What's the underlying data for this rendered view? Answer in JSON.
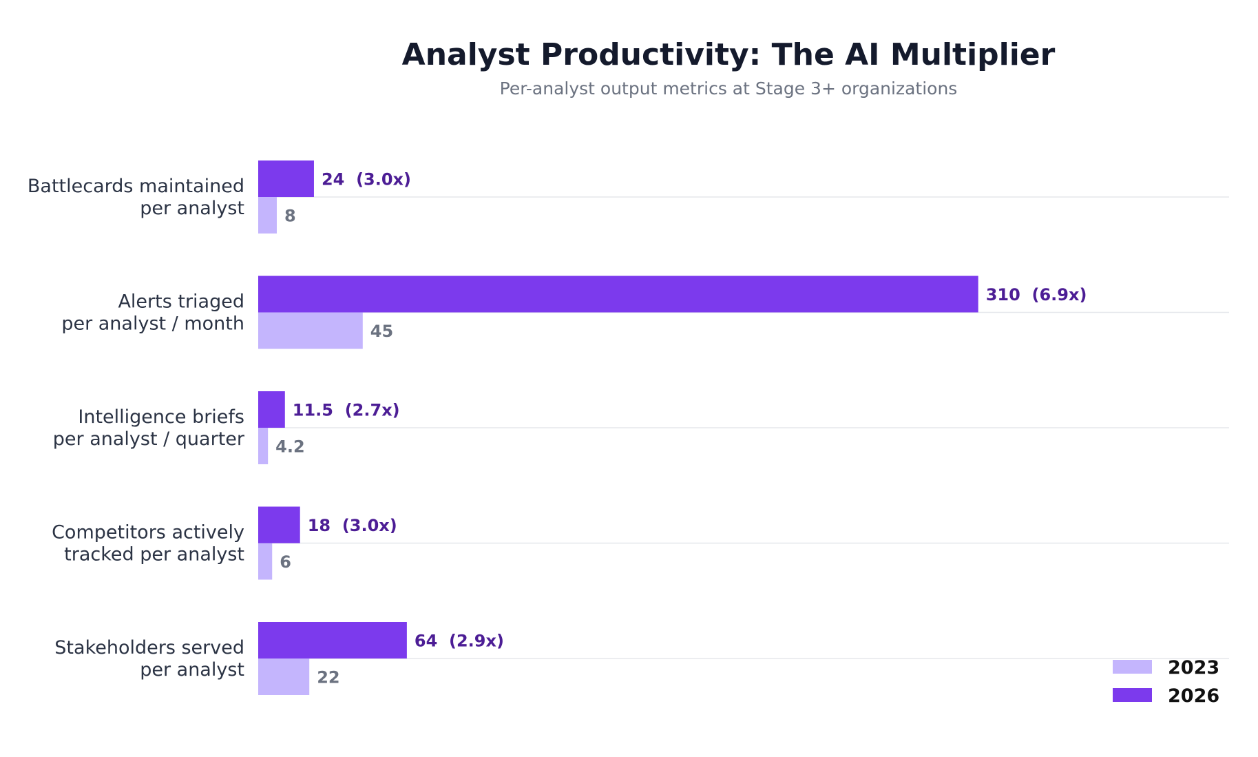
{
  "colors": {
    "series_2023": "#c4b5fd",
    "series_2026": "#7c3aed"
  },
  "chart_data": {
    "type": "bar",
    "orientation": "horizontal",
    "title": "Analyst Productivity: The AI Multiplier",
    "subtitle": "Per-analyst output metrics at Stage 3+ organizations",
    "categories": [
      [
        "Battlecards maintained",
        "per analyst"
      ],
      [
        "Alerts triaged",
        "per analyst / month"
      ],
      [
        "Intelligence briefs",
        "per analyst / quarter"
      ],
      [
        "Competitors actively",
        "tracked per analyst"
      ],
      [
        "Stakeholders served",
        "per analyst"
      ]
    ],
    "series": [
      {
        "name": "2023",
        "values": [
          8,
          45,
          4.2,
          6,
          22
        ],
        "labels": [
          "8",
          "45",
          "4.2",
          "6",
          "22"
        ]
      },
      {
        "name": "2026",
        "values": [
          24,
          310,
          11.5,
          18,
          64
        ],
        "labels": [
          "24  (3.0x)",
          "310  (6.9x)",
          "11.5  (2.7x)",
          "18  (3.0x)",
          "64  (2.9x)"
        ]
      }
    ],
    "xlim": [
      0,
      418
    ],
    "grid": true,
    "legend": "bottom-right"
  }
}
